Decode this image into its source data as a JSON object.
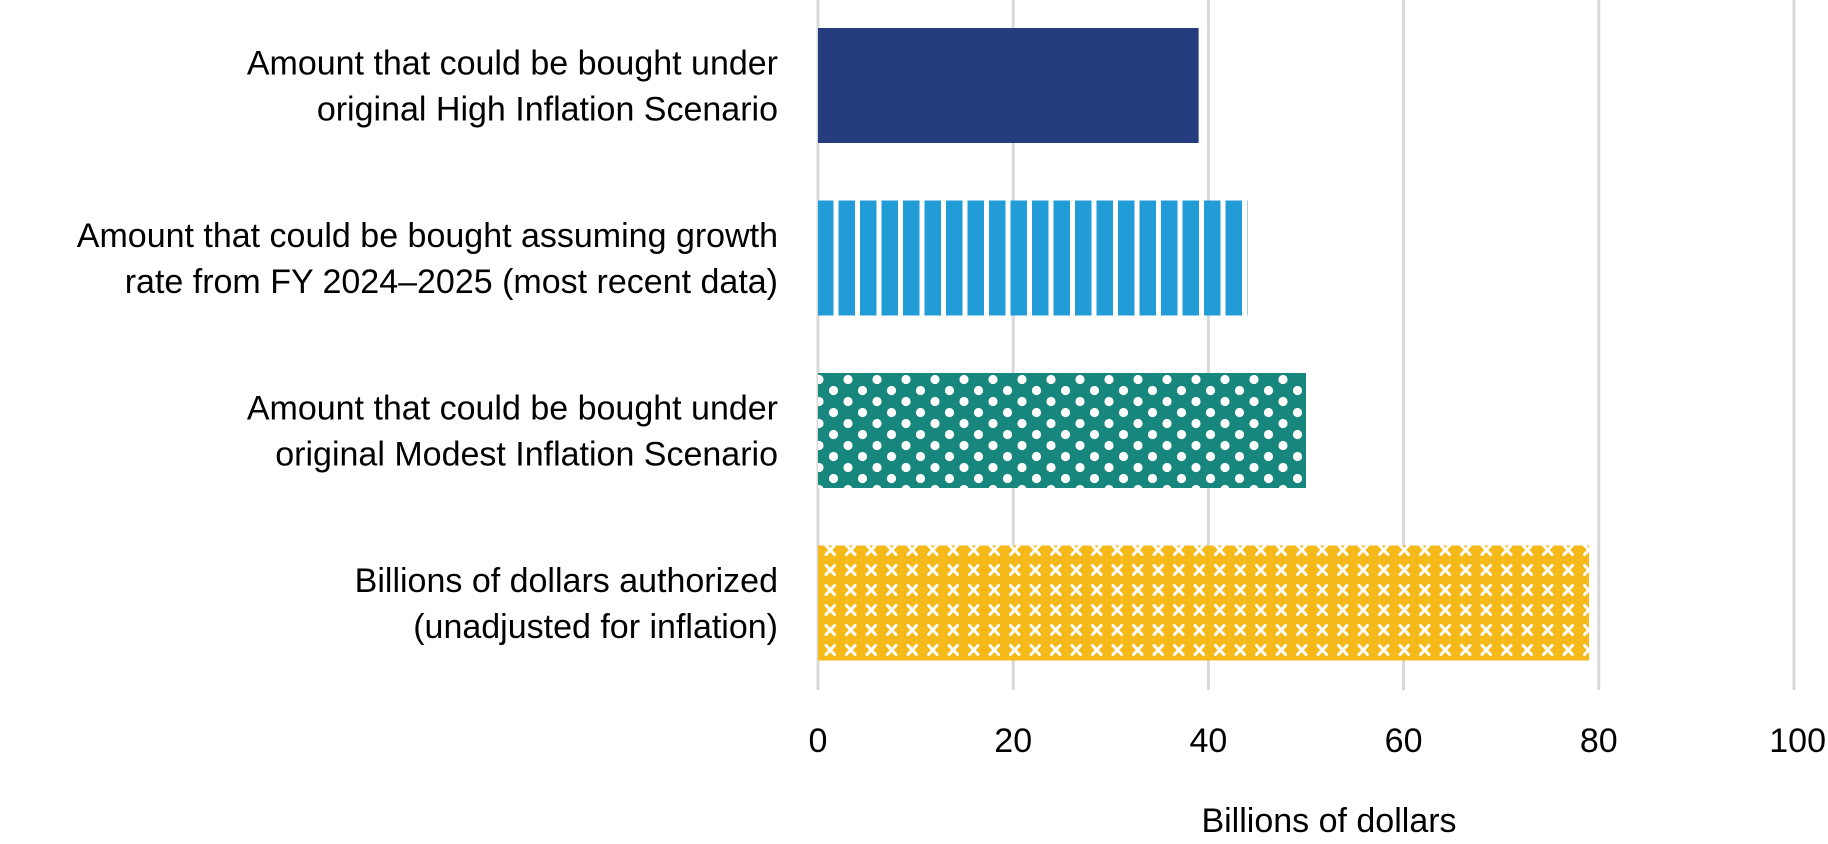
{
  "chart_data": {
    "type": "bar",
    "orientation": "horizontal",
    "title": "",
    "categories": [
      [
        "Amount that could be bought under",
        "original High Inflation Scenario"
      ],
      [
        "Amount that could be bought assuming growth",
        "rate from FY 2024–2025 (most recent data)"
      ],
      [
        "Amount that could be bought under",
        "original Modest Inflation Scenario"
      ],
      [
        "Billions of dollars authorized",
        "(unadjusted for inflation)"
      ]
    ],
    "values": [
      39,
      44,
      50,
      79
    ],
    "xlabel": "Billions of dollars",
    "ylabel": "",
    "xlim": [
      0,
      100
    ],
    "ticks": [
      0,
      20,
      40,
      60,
      80,
      100
    ],
    "tick_labels": [
      "0",
      "20",
      "40",
      "60",
      "80",
      "100"
    ],
    "grid": "vertical",
    "legend": "none",
    "bar_styles": [
      {
        "pattern": "solid",
        "color": "#253C7F"
      },
      {
        "pattern": "vertical-stripes",
        "color": "#229CD7"
      },
      {
        "pattern": "dots",
        "color": "#17877D"
      },
      {
        "pattern": "crosses",
        "color": "#F5B919"
      }
    ],
    "gridline_color": "#D9D9D9"
  }
}
